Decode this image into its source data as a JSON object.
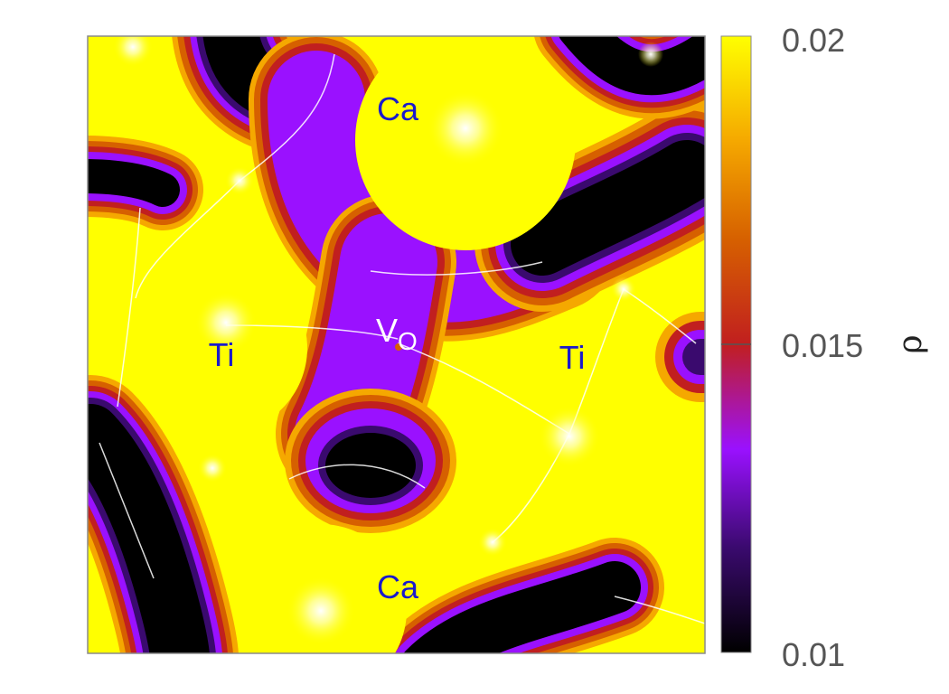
{
  "chart_data": {
    "type": "heatmap",
    "colormap": {
      "name": "gnuplot",
      "stops": [
        "#000000",
        "#3a0a6e",
        "#9a11ff",
        "#c11f1f",
        "#d66000",
        "#f5a800",
        "#ffff00"
      ]
    },
    "colorbar": {
      "label": "ρ",
      "range": [
        0.01,
        0.02
      ],
      "ticks": [
        "0.02",
        "0.015",
        "0.01"
      ]
    },
    "atom_labels": [
      {
        "text": "Ca",
        "id": "ca-top"
      },
      {
        "text": "Ti",
        "id": "ti-left"
      },
      {
        "text": "Ti",
        "id": "ti-right"
      },
      {
        "text": "Ca",
        "id": "ca-bottom"
      }
    ],
    "vacancy_label": {
      "main": "V",
      "sub": "O"
    },
    "colors": {
      "high_density": "#ffff00",
      "low_density": "#000000",
      "label_color": "#1a1acc",
      "streamline_color": "#ffffff"
    }
  }
}
